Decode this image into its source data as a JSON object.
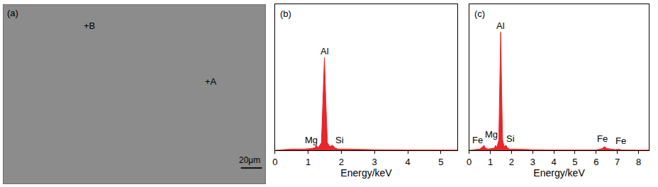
{
  "chart_data": [
    {
      "type": "image",
      "panel_label": "(a)",
      "tick_labels": false,
      "annotations": [
        {
          "text": "+B",
          "x": 0.33,
          "y": 0.88
        },
        {
          "text": "+A",
          "x": 0.79,
          "y": 0.57
        }
      ],
      "scale_bar": "20μm",
      "color": "#8c8c8c"
    },
    {
      "type": "area",
      "panel_label": "(b)",
      "xlabel": "Energy/keV",
      "color": "#e8262b",
      "x": [
        0,
        0.2,
        0.5,
        0.7,
        0.9,
        1.1,
        1.2,
        1.25,
        1.3,
        1.4,
        1.45,
        1.49,
        1.53,
        1.58,
        1.65,
        1.74,
        1.8,
        1.9,
        2.2,
        3,
        4,
        5,
        5.5
      ],
      "values": [
        0,
        0.5,
        1,
        1,
        1,
        1.5,
        2,
        4,
        2,
        6,
        40,
        73,
        40,
        6,
        3,
        4,
        2,
        1,
        1,
        0.5,
        0.3,
        0.2,
        0.2
      ],
      "xlim": [
        0,
        5.5
      ],
      "xticks": [
        0,
        1,
        2,
        3,
        4,
        5
      ],
      "ylim": [
        0,
        115
      ],
      "tick_labels": "x",
      "annotations": [
        {
          "text": "Al",
          "x": 1.49,
          "y": 73
        },
        {
          "text": "Mg",
          "x": 1.1,
          "y": 3
        },
        {
          "text": "Si",
          "x": 1.95,
          "y": 3
        }
      ]
    },
    {
      "type": "area",
      "panel_label": "(c)",
      "xlabel": "Energy/keV",
      "color": "#e8262b",
      "x": [
        0,
        0.2,
        0.5,
        0.65,
        0.7,
        0.75,
        0.9,
        1.1,
        1.2,
        1.25,
        1.3,
        1.4,
        1.45,
        1.49,
        1.53,
        1.58,
        1.65,
        1.74,
        1.8,
        1.9,
        2.2,
        3,
        4,
        5,
        6,
        6.3,
        6.4,
        6.5,
        6.9,
        7.06,
        7.2,
        8,
        8.5
      ],
      "values": [
        0,
        0.5,
        1,
        3,
        4,
        2,
        1,
        1.5,
        2,
        4,
        2,
        8,
        50,
        93,
        50,
        8,
        3,
        4,
        2,
        1,
        1,
        0.5,
        0.3,
        0.2,
        0.3,
        1.5,
        3,
        1.5,
        0.5,
        1,
        0.3,
        0.2,
        0.2
      ],
      "xlim": [
        0,
        8.5
      ],
      "xticks": [
        0,
        1,
        2,
        3,
        4,
        5,
        6,
        7,
        8
      ],
      "ylim": [
        0,
        115
      ],
      "tick_labels": "x",
      "annotations": [
        {
          "text": "Fe",
          "x": 0.4,
          "y": 3
        },
        {
          "text": "Mg",
          "x": 1.05,
          "y": 7
        },
        {
          "text": "Al",
          "x": 1.49,
          "y": 93
        },
        {
          "text": "Si",
          "x": 1.95,
          "y": 4
        },
        {
          "text": "Fe",
          "x": 6.3,
          "y": 4
        },
        {
          "text": "Fe",
          "x": 7.15,
          "y": 2
        }
      ]
    }
  ]
}
